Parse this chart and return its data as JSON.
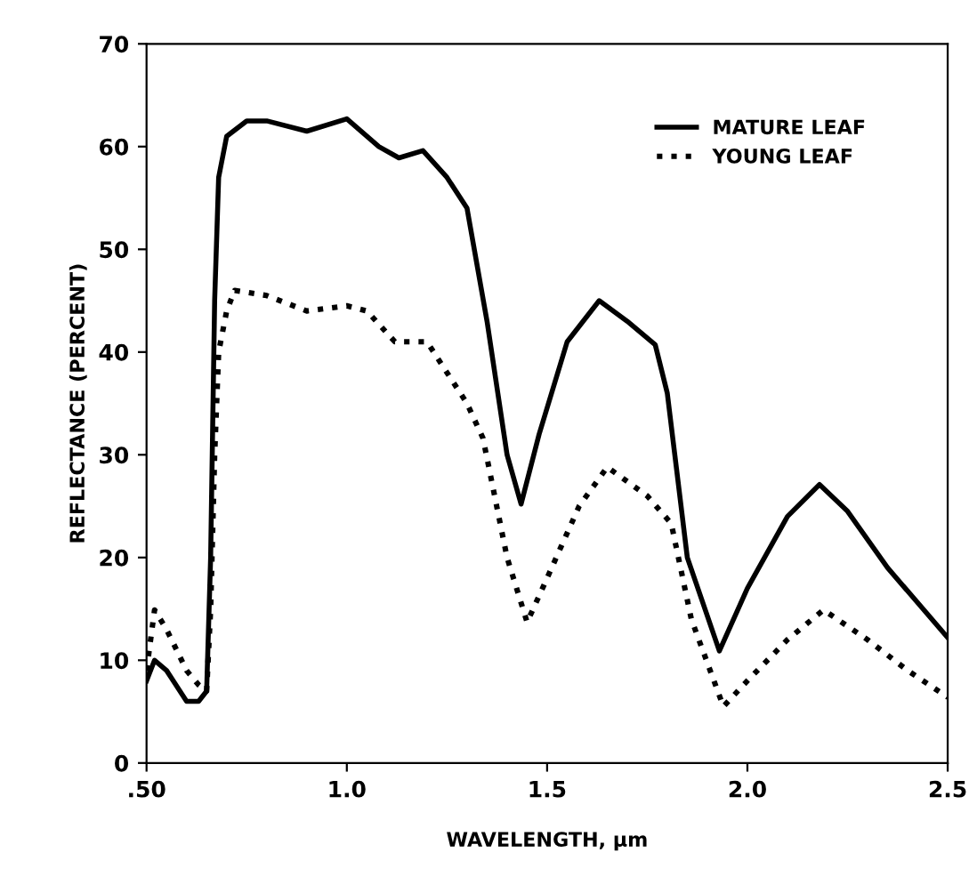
{
  "chart_data": {
    "type": "line",
    "xlabel": "WAVELENGTH, µm",
    "ylabel": "REFLECTANCE (PERCENT)",
    "xlim": [
      0.5,
      2.5
    ],
    "ylim": [
      0,
      70
    ],
    "xticks": [
      {
        "value": 0.5,
        "label": ".50"
      },
      {
        "value": 1.0,
        "label": "1.0"
      },
      {
        "value": 1.5,
        "label": "1.5"
      },
      {
        "value": 2.0,
        "label": "2.0"
      },
      {
        "value": 2.5,
        "label": "2.5"
      }
    ],
    "yticks": [
      0,
      10,
      20,
      30,
      40,
      50,
      60,
      70
    ],
    "grid": false,
    "legend": "top right",
    "marker": "none",
    "series": [
      {
        "name": "MATURE LEAF",
        "color": "#000000",
        "line_style": "solid",
        "x": [
          0.5,
          0.52,
          0.55,
          0.6,
          0.63,
          0.65,
          0.66,
          0.67,
          0.68,
          0.7,
          0.75,
          0.8,
          0.9,
          1.0,
          1.08,
          1.13,
          1.19,
          1.25,
          1.3,
          1.35,
          1.4,
          1.435,
          1.48,
          1.55,
          1.63,
          1.7,
          1.77,
          1.8,
          1.85,
          1.93,
          2.0,
          2.1,
          2.18,
          2.25,
          2.35,
          2.5
        ],
        "values": [
          8,
          10,
          9,
          6,
          6,
          7,
          20,
          45,
          57,
          61,
          62.5,
          62.5,
          61.5,
          62.7,
          60,
          58.9,
          59.6,
          57,
          54,
          43,
          30,
          25.2,
          32,
          41,
          45,
          43,
          40.7,
          36,
          20,
          10.9,
          17,
          24,
          27.1,
          24.5,
          19,
          12.2
        ]
      },
      {
        "name": "YOUNG LEAF",
        "color": "#000000",
        "line_style": "dotted",
        "x": [
          0.5,
          0.52,
          0.55,
          0.6,
          0.63,
          0.65,
          0.66,
          0.67,
          0.68,
          0.7,
          0.72,
          0.8,
          0.9,
          1.0,
          1.05,
          1.12,
          1.2,
          1.3,
          1.34,
          1.4,
          1.45,
          1.5,
          1.58,
          1.65,
          1.75,
          1.81,
          1.86,
          1.94,
          2.0,
          2.1,
          2.19,
          2.3,
          2.4,
          2.5
        ],
        "values": [
          9,
          14.9,
          13,
          9,
          7.6,
          7,
          15,
          30,
          40,
          44,
          46,
          45.5,
          44,
          44.5,
          44,
          41,
          41,
          35,
          31.6,
          20,
          13.7,
          18,
          25,
          28.8,
          26,
          23.3,
          14,
          5.5,
          8,
          12,
          14.9,
          12,
          9,
          6.4
        ]
      }
    ]
  }
}
